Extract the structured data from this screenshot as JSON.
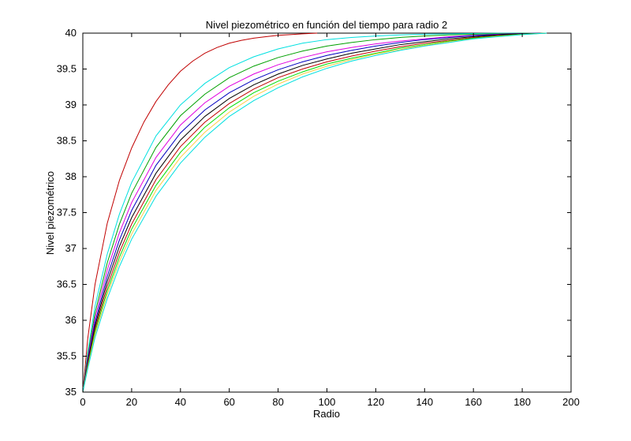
{
  "chart_data": {
    "type": "line",
    "title": "Nivel piezométrico en función del tiempo para radio 2",
    "xlabel": "Radio",
    "ylabel": "Nivel piezométrico",
    "xlim": [
      0,
      200
    ],
    "ylim": [
      35,
      40
    ],
    "xticks": [
      0,
      20,
      40,
      60,
      80,
      100,
      120,
      140,
      160,
      180,
      200
    ],
    "yticks": [
      35,
      35.5,
      36,
      36.5,
      37,
      37.5,
      38,
      38.5,
      39,
      39.5,
      40
    ],
    "xtick_labels": [
      "0",
      "20",
      "40",
      "60",
      "80",
      "100",
      "120",
      "140",
      "160",
      "180",
      "200"
    ],
    "ytick_labels": [
      "35",
      "35.5",
      "36",
      "36.5",
      "37",
      "37.5",
      "38",
      "38.5",
      "39",
      "39.5",
      "40"
    ],
    "grid": false,
    "legend": "none",
    "series": [
      {
        "color": "#c00000",
        "x": [
          0,
          2,
          5,
          10,
          15,
          20,
          25,
          30,
          35,
          40,
          45,
          50,
          55,
          60,
          65,
          70,
          75,
          80,
          85,
          90,
          96
        ],
        "y": [
          35.0,
          35.74,
          36.5,
          37.35,
          37.95,
          38.4,
          38.76,
          39.05,
          39.28,
          39.47,
          39.61,
          39.72,
          39.8,
          39.86,
          39.9,
          39.93,
          39.95,
          39.97,
          39.98,
          39.99,
          40.0
        ]
      },
      {
        "color": "#00e0e0",
        "x": [
          0,
          2,
          5,
          10,
          15,
          20,
          30,
          40,
          50,
          60,
          70,
          80,
          90,
          100,
          110,
          120,
          130,
          140,
          150,
          160,
          170,
          180,
          190
        ],
        "y": [
          35.0,
          35.55,
          36.2,
          36.92,
          37.48,
          37.92,
          38.57,
          39.0,
          39.3,
          39.52,
          39.67,
          39.78,
          39.86,
          39.91,
          39.94,
          39.96,
          39.975,
          39.985,
          39.99,
          39.995,
          39.998,
          39.999,
          40.0
        ]
      },
      {
        "color": "#00a000",
        "x": [
          0,
          2,
          5,
          10,
          15,
          20,
          30,
          40,
          50,
          60,
          70,
          80,
          90,
          100,
          110,
          120,
          130,
          140,
          150,
          160,
          170,
          180,
          190
        ],
        "y": [
          35.0,
          35.5,
          36.1,
          36.8,
          37.34,
          37.77,
          38.41,
          38.85,
          39.15,
          39.38,
          39.54,
          39.66,
          39.75,
          39.82,
          39.87,
          39.91,
          39.94,
          39.96,
          39.975,
          39.985,
          39.992,
          39.997,
          40.0
        ]
      },
      {
        "color": "#e000e0",
        "x": [
          0,
          2,
          5,
          10,
          15,
          20,
          30,
          40,
          50,
          60,
          70,
          80,
          90,
          100,
          110,
          120,
          130,
          140,
          150,
          160,
          170,
          180,
          190
        ],
        "y": [
          35.0,
          35.46,
          36.03,
          36.7,
          37.22,
          37.64,
          38.27,
          38.72,
          39.03,
          39.26,
          39.43,
          39.56,
          39.66,
          39.74,
          39.8,
          39.85,
          39.89,
          39.92,
          39.95,
          39.97,
          39.985,
          39.995,
          40.0
        ]
      },
      {
        "color": "#0000c0",
        "x": [
          0,
          2,
          5,
          10,
          15,
          20,
          30,
          40,
          50,
          60,
          70,
          80,
          90,
          100,
          110,
          120,
          130,
          140,
          150,
          160,
          170,
          180,
          190
        ],
        "y": [
          35.0,
          35.43,
          35.97,
          36.61,
          37.12,
          37.53,
          38.16,
          38.61,
          38.93,
          39.17,
          39.35,
          39.49,
          39.6,
          39.69,
          39.76,
          39.82,
          39.87,
          39.91,
          39.94,
          39.965,
          39.98,
          39.993,
          40.0
        ]
      },
      {
        "color": "#000000",
        "x": [
          0,
          2,
          5,
          10,
          15,
          20,
          30,
          40,
          50,
          60,
          70,
          80,
          90,
          100,
          110,
          120,
          130,
          140,
          150,
          160,
          170,
          180,
          190
        ],
        "y": [
          35.0,
          35.4,
          35.92,
          36.54,
          37.03,
          37.43,
          38.05,
          38.51,
          38.84,
          39.09,
          39.28,
          39.43,
          39.55,
          39.64,
          39.72,
          39.78,
          39.84,
          39.88,
          39.92,
          39.95,
          39.975,
          39.99,
          40.0
        ]
      },
      {
        "color": "#c00000",
        "x": [
          0,
          2,
          5,
          10,
          15,
          20,
          30,
          40,
          50,
          60,
          70,
          80,
          90,
          100,
          110,
          120,
          130,
          140,
          150,
          160,
          170,
          180,
          190
        ],
        "y": [
          35.0,
          35.38,
          35.88,
          36.47,
          36.95,
          37.34,
          37.96,
          38.42,
          38.76,
          39.02,
          39.22,
          39.38,
          39.5,
          39.6,
          39.68,
          39.75,
          39.81,
          39.86,
          39.9,
          39.94,
          39.965,
          39.985,
          40.0
        ]
      },
      {
        "color": "#00e000",
        "x": [
          0,
          2,
          5,
          10,
          15,
          20,
          30,
          40,
          50,
          60,
          70,
          80,
          90,
          100,
          110,
          120,
          130,
          140,
          150,
          160,
          170,
          180,
          190
        ],
        "y": [
          35.0,
          35.36,
          35.84,
          36.41,
          36.88,
          37.27,
          37.88,
          38.34,
          38.69,
          38.96,
          39.17,
          39.33,
          39.46,
          39.57,
          39.65,
          39.72,
          39.79,
          39.84,
          39.89,
          39.93,
          39.96,
          39.985,
          40.0
        ]
      },
      {
        "color": "#ffcc44",
        "x": [
          0,
          2,
          5,
          10,
          15,
          20,
          30,
          40,
          50,
          60,
          70,
          80,
          90,
          100,
          110,
          120,
          130,
          140,
          150,
          160,
          170,
          180,
          190
        ],
        "y": [
          35.0,
          35.34,
          35.8,
          36.36,
          36.82,
          37.2,
          37.81,
          38.27,
          38.62,
          38.9,
          39.12,
          39.29,
          39.43,
          39.54,
          39.63,
          39.71,
          39.77,
          39.83,
          39.88,
          39.92,
          39.955,
          39.98,
          40.0
        ]
      },
      {
        "color": "#00e0e0",
        "x": [
          0,
          2,
          5,
          10,
          15,
          20,
          30,
          40,
          50,
          60,
          70,
          80,
          90,
          100,
          110,
          120,
          130,
          140,
          150,
          160,
          170,
          180,
          190
        ],
        "y": [
          35.0,
          35.32,
          35.76,
          36.3,
          36.75,
          37.13,
          37.73,
          38.19,
          38.55,
          38.84,
          39.06,
          39.24,
          39.39,
          39.51,
          39.61,
          39.69,
          39.76,
          39.82,
          39.87,
          39.92,
          39.95,
          39.98,
          40.0
        ]
      }
    ]
  }
}
